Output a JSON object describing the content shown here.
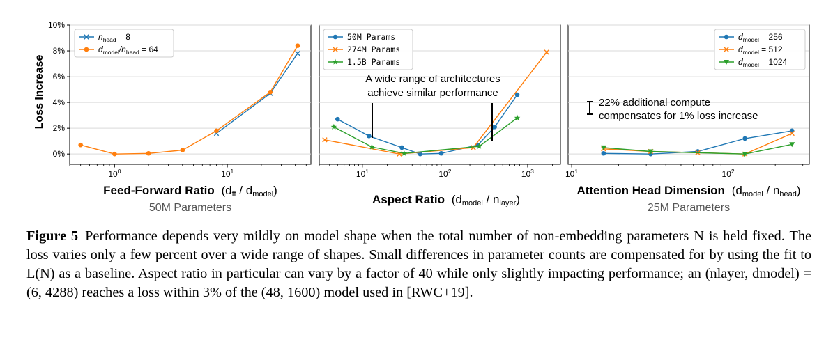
{
  "colors": {
    "blue": "#1f77b4",
    "orange": "#ff7f0e",
    "green": "#2ca02c",
    "grid": "#d9d9d9",
    "text_gray": "#555555"
  },
  "y_tick_labels": [
    "0%",
    "2%",
    "4%",
    "6%",
    "8%",
    "10%"
  ],
  "chart_data": [
    {
      "type": "line",
      "panel": "feed-forward",
      "ylabel": "Loss Increase",
      "xlabel_main": "Feed-Forward Ratio",
      "xlabel_expr": {
        "open": "(d",
        "sub1": "ff",
        "mid": " / d",
        "sub2": "model",
        "close": ")"
      },
      "subtitle": "50M Parameters",
      "x_scale": "log",
      "xlim": [
        0.4,
        55
      ],
      "ylim": [
        -0.8,
        10
      ],
      "x_tick_labels": [
        {
          "base": "10",
          "exp": "0",
          "value": 1
        },
        {
          "base": "10",
          "exp": "1",
          "value": 10
        }
      ],
      "legend_position": "top-left",
      "series": [
        {
          "legend": {
            "sym": "n",
            "sub": "head",
            "tail": " = 8"
          },
          "color": "blue",
          "marker": "x",
          "x": [
            8,
            24,
            42
          ],
          "y": [
            1.6,
            4.7,
            7.8
          ]
        },
        {
          "legend": {
            "sym": "d",
            "sub": "model",
            "mid": "/n",
            "sub2": "head",
            "tail": " = 64"
          },
          "color": "orange",
          "marker": "circle",
          "x": [
            0.5,
            1,
            2,
            4,
            8,
            24,
            42
          ],
          "y": [
            0.7,
            0.0,
            0.05,
            0.3,
            1.8,
            4.8,
            8.4
          ]
        }
      ]
    },
    {
      "type": "line",
      "panel": "aspect-ratio",
      "xlabel_main": "Aspect Ratio",
      "xlabel_expr": {
        "open": "(d",
        "sub1": "model",
        "mid": " / n",
        "sub2": "layer",
        "close": ")"
      },
      "x_scale": "log",
      "xlim": [
        3,
        2500
      ],
      "ylim": [
        -0.8,
        10
      ],
      "x_tick_labels": [
        {
          "base": "10",
          "exp": "1",
          "value": 10
        },
        {
          "base": "10",
          "exp": "2",
          "value": 100
        },
        {
          "base": "10",
          "exp": "3",
          "value": 1000
        }
      ],
      "legend_position": "top-left",
      "annotation": [
        "A wide range of architectures",
        "achieve similar performance"
      ],
      "series": [
        {
          "legend": {
            "sym": "50M Params"
          },
          "color": "blue",
          "marker": "circle",
          "x": [
            5,
            12,
            30,
            50,
            90,
            250,
            400,
            750
          ],
          "y": [
            2.7,
            1.4,
            0.5,
            0.0,
            0.05,
            0.7,
            2.1,
            4.6
          ]
        },
        {
          "legend": {
            "sym": "274M Params"
          },
          "color": "orange",
          "marker": "x",
          "x": [
            3.5,
            28,
            220,
            1700
          ],
          "y": [
            1.1,
            0.0,
            0.5,
            7.9
          ]
        },
        {
          "legend": {
            "sym": "1.5B Params"
          },
          "color": "green",
          "marker": "star",
          "x": [
            4.5,
            13,
            32,
            260,
            750
          ],
          "y": [
            2.1,
            0.55,
            0.05,
            0.6,
            2.8
          ]
        }
      ]
    },
    {
      "type": "line",
      "panel": "attention-head",
      "xlabel_main": "Attention Head Dimension",
      "xlabel_expr": {
        "open": "(d",
        "sub1": "model",
        "mid": " / n",
        "sub2": "head",
        "close": ")"
      },
      "subtitle": "25M Parameters",
      "x_scale": "log",
      "xlim": [
        9.5,
        330
      ],
      "ylim": [
        -0.8,
        10
      ],
      "x_tick_labels": [
        {
          "base": "10",
          "exp": "1",
          "value": 10
        },
        {
          "base": "10",
          "exp": "2",
          "value": 100
        }
      ],
      "legend_position": "top-right",
      "annotation": [
        "22% additional compute",
        "compensates for 1% loss increase"
      ],
      "series": [
        {
          "legend": {
            "sym": "d",
            "sub": "model",
            "tail": " = 256"
          },
          "color": "blue",
          "marker": "circle",
          "x": [
            16,
            32,
            64,
            128,
            256
          ],
          "y": [
            0.05,
            0.0,
            0.2,
            1.2,
            1.8
          ]
        },
        {
          "legend": {
            "sym": "d",
            "sub": "model",
            "tail": " = 512"
          },
          "color": "orange",
          "marker": "x",
          "x": [
            16,
            32,
            64,
            128,
            256
          ],
          "y": [
            0.4,
            0.2,
            0.1,
            0.0,
            1.6
          ]
        },
        {
          "legend": {
            "sym": "d",
            "sub": "model",
            "tail": " = 1024"
          },
          "color": "green",
          "marker": "triangle",
          "x": [
            16,
            32,
            128,
            256
          ],
          "y": [
            0.5,
            0.2,
            0.0,
            0.75
          ]
        }
      ]
    }
  ],
  "caption": {
    "label": "Figure 5",
    "text": "Performance depends very mildly on model shape when the total number of non-embedding parameters N is held fixed. The loss varies only a few percent over a wide range of shapes. Small differences in parameter counts are compensated for by using the fit to L(N) as a baseline. Aspect ratio in particular can vary by a factor of 40 while only slightly impacting performance; an (nlayer, dmodel) = (6, 4288) reaches a loss within 3% of the (48, 1600) model used in [RWC+19]."
  }
}
